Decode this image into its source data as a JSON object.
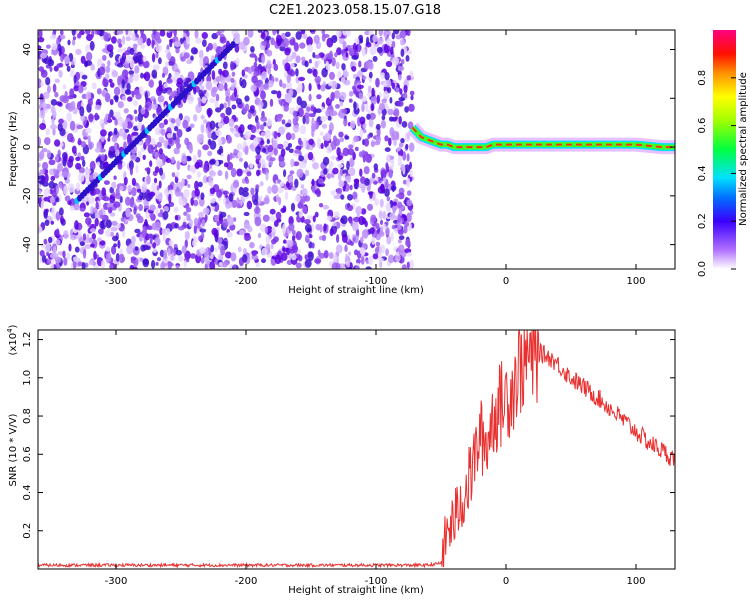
{
  "figure": {
    "title": "C2E1.2023.058.15.07.G18"
  },
  "chart_data": [
    {
      "type": "heatmap",
      "xlabel": "Height of straight line (km)",
      "ylabel": "Frequency (Hz)",
      "xlim": [
        -360,
        130
      ],
      "ylim": [
        -50,
        48
      ],
      "xticks": [
        -300,
        -200,
        -100,
        0,
        100
      ],
      "yticks": [
        -40,
        -20,
        0,
        20,
        40
      ],
      "noise_region_x": [
        -360,
        -72
      ],
      "diagonal_trace": {
        "x": [
          -330,
          -210
        ],
        "y": [
          -22,
          42
        ]
      },
      "signal_trace": {
        "x": [
          -72,
          -65,
          -60,
          -55,
          -50,
          -45,
          -40,
          -35,
          -30,
          -25,
          -20,
          -15,
          -10,
          -5,
          0,
          10,
          20,
          40,
          60,
          80,
          100,
          120,
          130
        ],
        "y": [
          8,
          4,
          3,
          2,
          1,
          1,
          0,
          0,
          0,
          0,
          0,
          0,
          1,
          1,
          1,
          1,
          1,
          1,
          1,
          1,
          1,
          0,
          0
        ]
      },
      "colorbar": {
        "label": "Normalized spectral amplitude",
        "range": [
          0,
          1
        ],
        "ticks": [
          "0.0",
          "0.2",
          "0.4",
          "0.6",
          "0.8"
        ]
      }
    },
    {
      "type": "line",
      "xlabel": "Height of straight line (km)",
      "ylabel": "SNR (10 * V/V)",
      "yscale_label": "(x10",
      "yscale_exp": "4",
      "yscale_close": ")",
      "xlim": [
        -360,
        130
      ],
      "ylim": [
        0,
        1.25
      ],
      "xticks": [
        -300,
        -200,
        -100,
        0,
        100
      ],
      "yticks": [
        "0.2",
        "0.4",
        "0.6",
        "0.8",
        "1.0",
        "1.2"
      ],
      "color": "#e83030",
      "series": [
        {
          "x": [
            -360,
            -300,
            -250,
            -200,
            -150,
            -100,
            -60,
            -50,
            -45,
            -40,
            -35,
            -30,
            -25,
            -20,
            -15,
            -10,
            -5,
            0,
            5,
            10,
            15,
            20,
            25,
            30,
            35,
            40,
            50,
            60,
            70,
            80,
            90,
            100,
            110,
            120,
            130
          ],
          "y": [
            0.02,
            0.02,
            0.02,
            0.02,
            0.02,
            0.02,
            0.02,
            0.03,
            0.2,
            0.25,
            0.35,
            0.42,
            0.55,
            0.7,
            0.65,
            0.8,
            0.85,
            0.9,
            0.95,
            1.05,
            1.1,
            1.12,
            1.13,
            1.12,
            1.1,
            1.07,
            1.0,
            0.95,
            0.9,
            0.84,
            0.78,
            0.72,
            0.66,
            0.62,
            0.57
          ]
        }
      ]
    }
  ]
}
